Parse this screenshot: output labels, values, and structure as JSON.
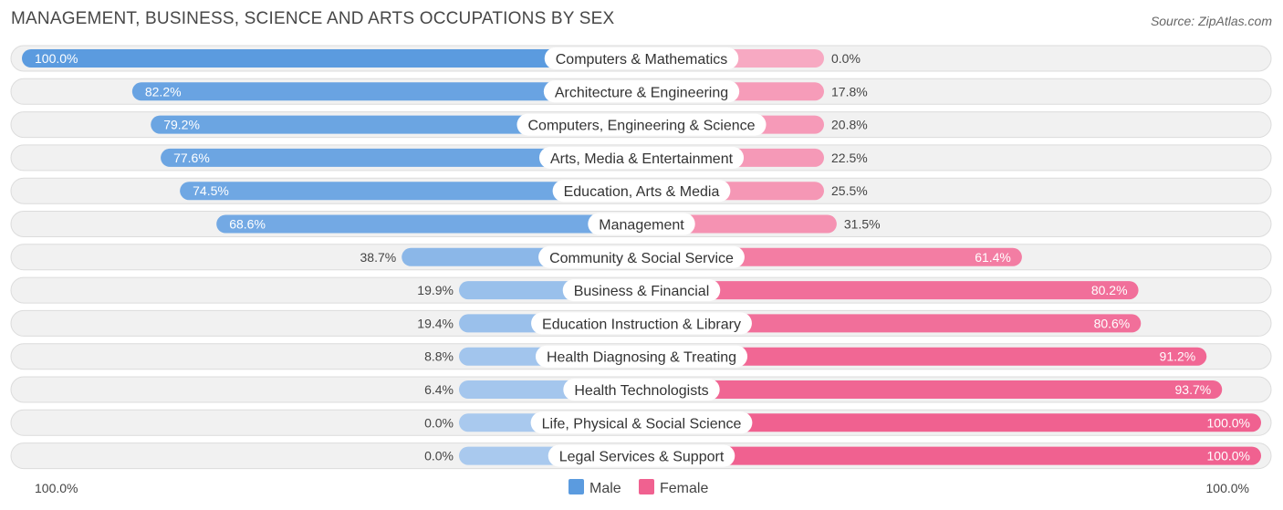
{
  "title": "MANAGEMENT, BUSINESS, SCIENCE AND ARTS OCCUPATIONS BY SEX",
  "source": "Source: ZipAtlas.com",
  "colors": {
    "male_full": "#5b9bdf",
    "male_light": "#a9c9ee",
    "female_full": "#f06190",
    "female_light": "#f7a9c2"
  },
  "chart_data": {
    "type": "bar",
    "orientation": "horizontal-diverging",
    "title": "MANAGEMENT, BUSINESS, SCIENCE AND ARTS OCCUPATIONS BY SEX",
    "categories": [
      "Computers & Mathematics",
      "Architecture & Engineering",
      "Computers, Engineering & Science",
      "Arts, Media & Entertainment",
      "Education, Arts & Media",
      "Management",
      "Community & Social Service",
      "Business & Financial",
      "Education Instruction & Library",
      "Health Diagnosing & Treating",
      "Health Technologists",
      "Life, Physical & Social Science",
      "Legal Services & Support"
    ],
    "series": [
      {
        "name": "Male",
        "values": [
          100.0,
          82.2,
          79.2,
          77.6,
          74.5,
          68.6,
          38.7,
          19.9,
          19.4,
          8.8,
          6.4,
          0.0,
          0.0
        ],
        "labels": [
          "100.0%",
          "82.2%",
          "79.2%",
          "77.6%",
          "74.5%",
          "68.6%",
          "38.7%",
          "19.9%",
          "19.4%",
          "8.8%",
          "6.4%",
          "0.0%",
          "0.0%"
        ]
      },
      {
        "name": "Female",
        "values": [
          0.0,
          17.8,
          20.8,
          22.5,
          25.5,
          31.5,
          61.4,
          80.2,
          80.6,
          91.2,
          93.7,
          100.0,
          100.0
        ],
        "labels": [
          "0.0%",
          "17.8%",
          "20.8%",
          "22.5%",
          "25.5%",
          "31.5%",
          "61.4%",
          "80.2%",
          "80.6%",
          "91.2%",
          "93.7%",
          "100.0%",
          "100.0%"
        ]
      }
    ],
    "axis_left_label": "100.0%",
    "axis_right_label": "100.0%",
    "xlim": [
      -100,
      100
    ],
    "legend": [
      "Male",
      "Female"
    ],
    "legend_position": "bottom-center"
  }
}
